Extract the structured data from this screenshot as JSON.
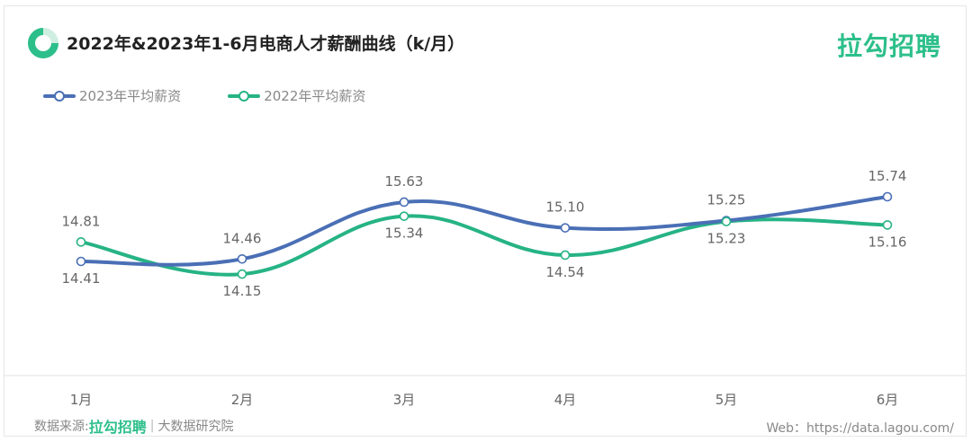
{
  "header": {
    "title": "2022年&2023年1-6月电商人才薪酬曲线（k/月）",
    "brand": "拉勾招聘"
  },
  "colors": {
    "series_2023": "#4a6fb5",
    "series_2022": "#26b385",
    "brand": "#2dbf8b",
    "grid": "#e0e0e0",
    "label": "#666666"
  },
  "chart_data": {
    "type": "line",
    "title": "2022年&2023年1-6月电商人才薪酬曲线（k/月）",
    "categories": [
      "1月",
      "2月",
      "3月",
      "4月",
      "5月",
      "6月"
    ],
    "series": [
      {
        "name": "2023年平均薪资",
        "values": [
          14.41,
          14.46,
          15.63,
          15.1,
          15.25,
          15.74
        ]
      },
      {
        "name": "2022年平均薪资",
        "values": [
          14.81,
          14.15,
          15.34,
          14.54,
          15.23,
          15.16
        ]
      }
    ],
    "data_labels": {
      "series_0": [
        "14.41",
        "14.46",
        "15.63",
        "15.10",
        "15.25",
        "15.74"
      ],
      "series_1": [
        "14.81",
        "14.15",
        "15.34",
        "14.54",
        "15.23",
        "15.16"
      ]
    },
    "legend": "top-left",
    "smooth": true,
    "grid": false
  },
  "footer": {
    "source_label": "数据来源:",
    "source_brand": "拉勾招聘",
    "source_separator": "|",
    "source_org": "大数据研究院",
    "web": "Web：https://data.lagou.com/"
  }
}
